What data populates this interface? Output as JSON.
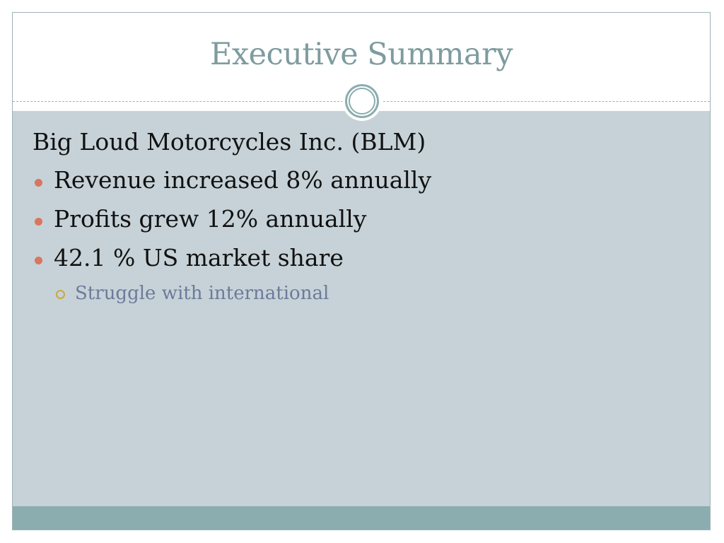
{
  "slide": {
    "title": "Executive Summary",
    "lead": "Big Loud Motorcycles Inc. (BLM)",
    "bullets": [
      "Revenue increased 8% annually",
      "Profits grew 12% annually",
      "42.1 % US market share"
    ],
    "sub_bullets": [
      "Struggle with international"
    ]
  },
  "colors": {
    "title": "#7e9c9f",
    "content_background": "#c6d2d8",
    "footer_bar": "#8badaf",
    "bullet": "#d9765f",
    "sub_bullet": "#c9a93a",
    "sub_text": "#6d7a99"
  },
  "icons": {
    "bullet": "filled-circle",
    "sub_bullet": "hollow-circle",
    "ornament": "double-ring-circle"
  }
}
